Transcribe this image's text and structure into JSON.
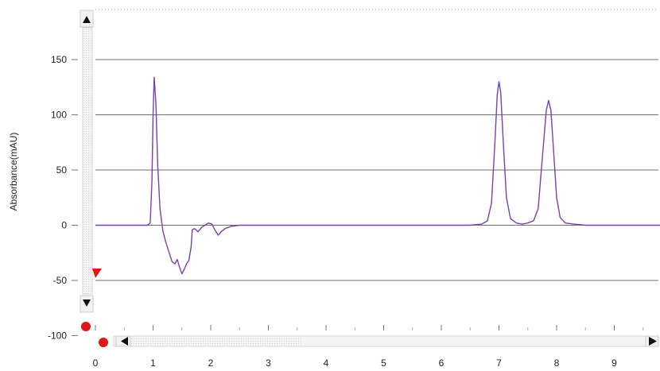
{
  "chart_data": {
    "type": "line",
    "title": "",
    "xlabel": "",
    "ylabel": "Absorbance(mAU)",
    "xlim": [
      0,
      9.8
    ],
    "ylim": [
      -100,
      180
    ],
    "x_ticks": [
      0,
      1,
      2,
      3,
      4,
      5,
      6,
      7,
      8,
      9
    ],
    "y_ticks": [
      -100,
      -50,
      0,
      50,
      100,
      150
    ],
    "grid": "horizontal",
    "legend": "none",
    "series": [
      {
        "color": "#7a3fb0",
        "points": [
          [
            0.0,
            0
          ],
          [
            0.5,
            0
          ],
          [
            0.9,
            0
          ],
          [
            0.95,
            2
          ],
          [
            0.98,
            40
          ],
          [
            1.0,
            100
          ],
          [
            1.02,
            134
          ],
          [
            1.05,
            110
          ],
          [
            1.08,
            55
          ],
          [
            1.12,
            15
          ],
          [
            1.17,
            -5
          ],
          [
            1.22,
            -15
          ],
          [
            1.28,
            -25
          ],
          [
            1.33,
            -33
          ],
          [
            1.38,
            -35
          ],
          [
            1.42,
            -31
          ],
          [
            1.46,
            -38
          ],
          [
            1.5,
            -44
          ],
          [
            1.54,
            -40
          ],
          [
            1.58,
            -35
          ],
          [
            1.62,
            -32
          ],
          [
            1.66,
            -20
          ],
          [
            1.68,
            -4
          ],
          [
            1.72,
            -3
          ],
          [
            1.78,
            -6
          ],
          [
            1.84,
            -2
          ],
          [
            1.9,
            0
          ],
          [
            1.96,
            2
          ],
          [
            2.02,
            1
          ],
          [
            2.08,
            -5
          ],
          [
            2.13,
            -9
          ],
          [
            2.18,
            -6
          ],
          [
            2.25,
            -3
          ],
          [
            2.35,
            -1
          ],
          [
            2.5,
            0
          ],
          [
            3.5,
            0
          ],
          [
            5.0,
            0
          ],
          [
            6.5,
            0
          ],
          [
            6.7,
            1
          ],
          [
            6.8,
            4
          ],
          [
            6.87,
            20
          ],
          [
            6.93,
            75
          ],
          [
            6.97,
            118
          ],
          [
            7.0,
            130
          ],
          [
            7.03,
            120
          ],
          [
            7.08,
            70
          ],
          [
            7.13,
            25
          ],
          [
            7.2,
            6
          ],
          [
            7.3,
            2
          ],
          [
            7.4,
            1
          ],
          [
            7.5,
            2
          ],
          [
            7.6,
            4
          ],
          [
            7.68,
            15
          ],
          [
            7.75,
            60
          ],
          [
            7.82,
            104
          ],
          [
            7.86,
            113
          ],
          [
            7.9,
            104
          ],
          [
            7.95,
            65
          ],
          [
            8.0,
            25
          ],
          [
            8.06,
            7
          ],
          [
            8.15,
            2
          ],
          [
            8.3,
            1
          ],
          [
            8.5,
            0
          ],
          [
            9.0,
            0
          ],
          [
            9.8,
            0
          ]
        ]
      }
    ]
  },
  "colors": {
    "gridline": "#6f6f6f",
    "marker_red": "#e01818",
    "scrollbar_bg": "#f2f2f2",
    "axis": "#777777"
  },
  "controls": {
    "scroll_up_icon": "arrow-up-icon",
    "scroll_down_icon": "arrow-down-icon",
    "scroll_left_icon": "arrow-left-icon",
    "scroll_right_icon": "arrow-right-icon"
  }
}
